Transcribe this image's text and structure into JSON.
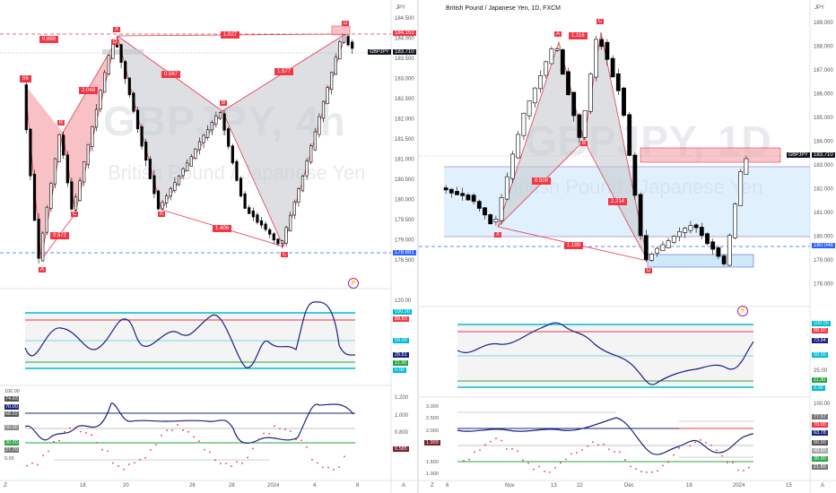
{
  "left": {
    "currency": "JPY",
    "watermark_symbol": "GBPJPY, 4h",
    "watermark_name": "British Pound / Japanese Yen",
    "price_ticks": [
      "184.500",
      "184.000",
      "183.500",
      "183.000",
      "182.500",
      "182.000",
      "181.500",
      "181.000",
      "180.500",
      "180.000",
      "179.500",
      "179.000",
      "178.500"
    ],
    "price_label_red": "184.151",
    "price_label_last": "183.710",
    "symbol_tag": "GBPJPY",
    "price_label_blue": "178.681",
    "date_ticks": [
      "18",
      "20",
      "26",
      "28",
      "2024",
      "4",
      "8"
    ],
    "osc_ticks": [
      "120.00",
      "100.00",
      "50.00",
      "0.00"
    ],
    "osc_labels": {
      "top": "100.00",
      "red": "88.60",
      "mid": "50.00",
      "line": "25.51",
      "green": "11.30",
      "bottom": "0.00"
    },
    "ind2_ticks": [
      "1.200",
      "1.000",
      "0.800",
      "0.600"
    ],
    "ind2_labels": {
      "a": "100.00",
      "b": "74.93",
      "c": "70.00",
      "d": "68.02",
      "e": "50.00",
      "f": "30.00",
      "g": "27.70",
      "h": "0.00",
      "i": "0.585"
    },
    "pattern_labels": [
      "X",
      "A",
      "B",
      "C",
      "D",
      "A",
      "B",
      "C",
      "D",
      "X",
      "A",
      "C"
    ],
    "ratios": [
      "0.889",
      "1.027",
      "0.567",
      "1.577",
      "2.048",
      "0.572",
      "1.406",
      "56"
    ]
  },
  "right": {
    "title": "British Pound / Japanese Yen, 1D, FXCM",
    "currency": "JPY",
    "watermark_symbol": "GBPJPY, 1D",
    "watermark_name": "British Pound / Japanese Yen",
    "price_ticks": [
      "189.000",
      "188.000",
      "187.000",
      "186.000",
      "185.000",
      "184.000",
      "183.000",
      "182.000",
      "181.000",
      "180.000",
      "179.000",
      "178.000"
    ],
    "symbol_tag": "GBPJPY",
    "price_label_last": "183.710",
    "price_label_blue": "180.048",
    "date_ticks": [
      "6",
      "Nov",
      "13",
      "22",
      "Dec",
      "18",
      "2024",
      "15"
    ],
    "osc_labels": {
      "top": "100.00",
      "red": "88.60",
      "line": "73.94",
      "mid": "50.00",
      "low": "25.00",
      "green": "11.30",
      "bottom": "0.00"
    },
    "ind2_ticks": [
      "3.000",
      "2.500",
      "2.000",
      "1.500",
      "1.000"
    ],
    "ind2_labels": {
      "a": "100.00",
      "b": "77.57",
      "c": "70.00",
      "d": "63.78",
      "e": "50.00",
      "f": "40.00",
      "g": "30.00",
      "h": "21.89",
      "left": "1.909"
    },
    "pattern_labels": [
      "X",
      "A",
      "B",
      "C",
      "D"
    ],
    "ratios": [
      "1.116",
      "0.509",
      "2.214",
      "1.199"
    ]
  },
  "footer": {
    "left_z": "Z",
    "left_a": "A",
    "right_z": "Z",
    "right_a": "A"
  }
}
